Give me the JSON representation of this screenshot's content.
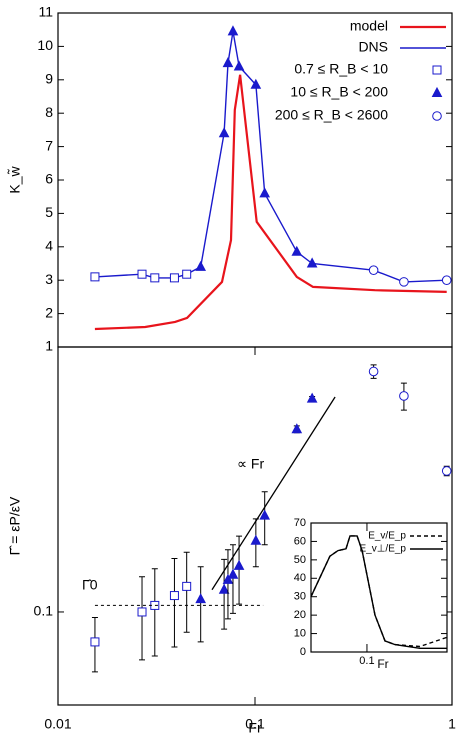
{
  "chart_data": [
    {
      "type": "line",
      "xlog": true,
      "xlim": [
        0.01,
        1
      ],
      "ylim": [
        1,
        11
      ],
      "yticks": [
        1,
        2,
        3,
        4,
        5,
        6,
        7,
        8,
        9,
        10,
        11
      ],
      "ylabel": "K_w̃",
      "series": [
        {
          "name": "model",
          "color": "#e8141c",
          "style": "line",
          "x": [
            0.0154,
            0.0277,
            0.0393,
            0.0452,
            0.068,
            0.0755,
            0.079,
            0.084,
            0.102,
            0.163,
            0.197,
            0.406,
            0.94
          ],
          "values": [
            1.54,
            1.6,
            1.75,
            1.87,
            2.95,
            4.2,
            8.1,
            9.15,
            4.75,
            3.1,
            2.8,
            2.7,
            2.65
          ]
        },
        {
          "name": "DNS",
          "color": "#1a1acc",
          "style": "line",
          "x": [
            0.0154,
            0.0267,
            0.031,
            0.039,
            0.045,
            0.053,
            0.0697,
            0.0729,
            0.0773,
            0.083,
            0.101,
            0.112,
            0.163,
            0.195,
            0.4,
            0.57,
            0.94
          ],
          "values": [
            3.1,
            3.18,
            3.07,
            3.07,
            3.18,
            3.4,
            7.4,
            9.5,
            10.45,
            9.4,
            8.85,
            5.6,
            3.85,
            3.5,
            3.3,
            2.95,
            3.0
          ]
        },
        {
          "name": "0.7 ≤ R_B <   10",
          "color": "#1a1acc",
          "style": "square",
          "x": [
            0.0154,
            0.0267,
            0.031,
            0.039,
            0.045
          ],
          "values": [
            3.1,
            3.18,
            3.07,
            3.07,
            3.18
          ]
        },
        {
          "name": "10 ≤ R_B <  200",
          "color": "#1a1acc",
          "style": "triangle",
          "x": [
            0.053,
            0.0697,
            0.0729,
            0.0773,
            0.083,
            0.101,
            0.112,
            0.163,
            0.195
          ],
          "values": [
            3.4,
            7.4,
            9.5,
            10.45,
            9.4,
            8.85,
            5.6,
            3.85,
            3.5
          ]
        },
        {
          "name": "200 ≤ R_B < 2600",
          "color": "#1a1acc",
          "style": "circle",
          "x": [
            0.4,
            0.57,
            0.94
          ],
          "values": [
            3.3,
            2.95,
            3.0
          ]
        }
      ]
    },
    {
      "type": "scatter",
      "xlog": true,
      "ylog": true,
      "xlim": [
        0.01,
        1
      ],
      "ylim": [
        0.05,
        0.72
      ],
      "xticks": [
        0.01,
        0.1,
        1
      ],
      "yticks": [
        0.1
      ],
      "xlabel": "Fr",
      "ylabel": "Γ̂ = εP/εV",
      "series": [
        {
          "color": "#1a1acc",
          "style": "square",
          "x": [
            0.0154,
            0.0267,
            0.031,
            0.039,
            0.045
          ],
          "values": [
            0.08,
            0.1,
            0.105,
            0.113,
            0.121
          ],
          "errors": [
            0.016,
            0.03,
            0.033,
            0.036,
            0.035
          ]
        },
        {
          "color": "#1a1acc",
          "style": "triangle",
          "x": [
            0.053,
            0.0697,
            0.0729,
            0.0773,
            0.083,
            0.101,
            0.112,
            0.163,
            0.195
          ],
          "values": [
            0.11,
            0.118,
            0.127,
            0.132,
            0.141,
            0.17,
            0.205,
            0.39,
            0.49
          ],
          "errors": [
            0.03,
            0.03,
            0.032,
            0.033,
            0.035,
            0.03,
            0.04,
            0.01,
            0.008
          ]
        },
        {
          "color": "#1a1acc",
          "style": "circle",
          "x": [
            0.4,
            0.57,
            0.94
          ],
          "values": [
            0.6,
            0.5,
            0.286
          ],
          "errors": [
            0.03,
            0.05,
            0.01
          ]
        }
      ],
      "fit": {
        "label": "∝ Fr",
        "x": [
          0.0605,
          0.255
        ],
        "values": [
          0.118,
          0.496
        ]
      },
      "gamma0": {
        "label": "Γ̂0",
        "value": 0.105,
        "x": [
          0.0154,
          0.11
        ]
      }
    },
    {
      "type": "line",
      "xlog": true,
      "xlim": [
        0.02,
        1
      ],
      "ylim": [
        0,
        70
      ],
      "xticks": [
        0.1
      ],
      "yticks": [
        0,
        10,
        20,
        30,
        40,
        50,
        60,
        70
      ],
      "xlabel": "Fr",
      "series": [
        {
          "name": "E_v/E_p",
          "color": "#000000",
          "style": "dash",
          "x": [
            0.02,
            0.0344,
            0.0435,
            0.0547,
            0.0614,
            0.0754,
            0.087,
            0.126,
            0.168,
            0.224,
            0.459,
            1.0
          ],
          "values": [
            30,
            52,
            55,
            56,
            63,
            63,
            55,
            20,
            6,
            4,
            3,
            8
          ]
        },
        {
          "name": "E_v⊥/E_p",
          "color": "#000000",
          "style": "line",
          "x": [
            0.02,
            0.0344,
            0.0435,
            0.0547,
            0.0614,
            0.0754,
            0.087,
            0.126,
            0.168,
            0.224,
            0.459,
            1.0
          ],
          "values": [
            30,
            52,
            55,
            56,
            63,
            63,
            55,
            20,
            6,
            4,
            2,
            2
          ]
        }
      ]
    }
  ]
}
